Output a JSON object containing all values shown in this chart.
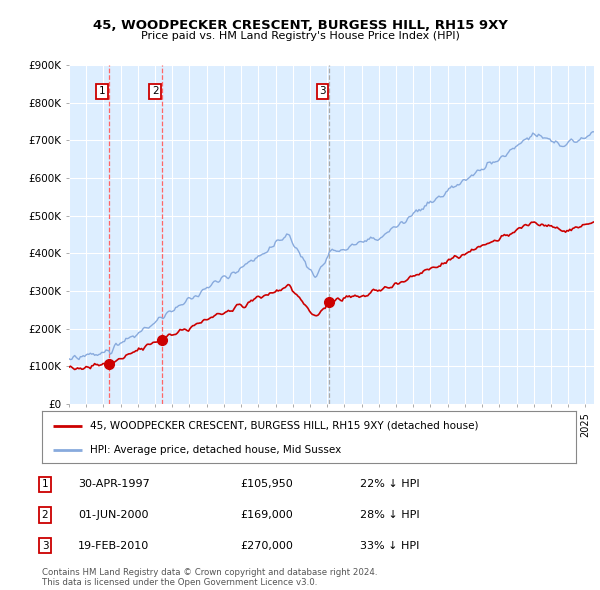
{
  "title": "45, WOODPECKER CRESCENT, BURGESS HILL, RH15 9XY",
  "subtitle": "Price paid vs. HM Land Registry's House Price Index (HPI)",
  "ylabel_ticks": [
    "£0",
    "£100K",
    "£200K",
    "£300K",
    "£400K",
    "£500K",
    "£600K",
    "£700K",
    "£800K",
    "£900K"
  ],
  "ylim": [
    0,
    900000
  ],
  "xlim_start": 1995.0,
  "xlim_end": 2025.5,
  "sale_points": [
    {
      "date": 1997.33,
      "price": 105950,
      "label": "1",
      "vline_color": "#ff6666",
      "vline_style": "--"
    },
    {
      "date": 2000.42,
      "price": 169000,
      "label": "2",
      "vline_color": "#ff6666",
      "vline_style": "--"
    },
    {
      "date": 2010.13,
      "price": 270000,
      "label": "3",
      "vline_color": "#aaaaaa",
      "vline_style": "--"
    }
  ],
  "red_line_color": "#cc0000",
  "blue_line_color": "#88aadd",
  "sale_dot_color": "#cc0000",
  "label_box_color": "#cc0000",
  "bg_plot_color": "#ddeeff",
  "grid_color": "#ffffff",
  "legend_line1": "45, WOODPECKER CRESCENT, BURGESS HILL, RH15 9XY (detached house)",
  "legend_line2": "HPI: Average price, detached house, Mid Sussex",
  "table_rows": [
    {
      "num": "1",
      "date": "30-APR-1997",
      "price": "£105,950",
      "pct": "22% ↓ HPI"
    },
    {
      "num": "2",
      "date": "01-JUN-2000",
      "price": "£169,000",
      "pct": "28% ↓ HPI"
    },
    {
      "num": "3",
      "date": "19-FEB-2010",
      "price": "£270,000",
      "pct": "33% ↓ HPI"
    }
  ],
  "footnote1": "Contains HM Land Registry data © Crown copyright and database right 2024.",
  "footnote2": "This data is licensed under the Open Government Licence v3.0."
}
